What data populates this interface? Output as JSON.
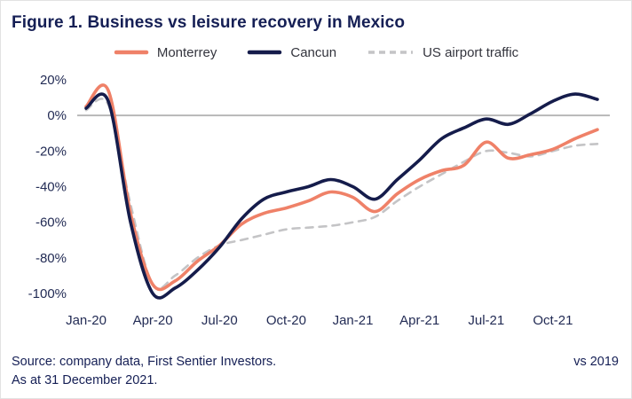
{
  "figure": {
    "title": "Figure 1. Business vs leisure recovery in Mexico",
    "source_line1": "Source: company data, First Sentier Investors.",
    "source_line2": "As at 31 December 2021.",
    "note_right": "vs 2019"
  },
  "colors": {
    "title_text": "#151f55",
    "axis_text": "#232c55",
    "zero_line": "#b4b4b4",
    "monterrey": "#ef8168",
    "cancun": "#151c4b",
    "us_airport_traffic": "#c4c4c6"
  },
  "chart_data": {
    "type": "line",
    "title": "Figure 1. Business vs leisure recovery in Mexico",
    "x": [
      "Jan-20",
      "Feb-20",
      "Mar-20",
      "Apr-20",
      "May-20",
      "Jun-20",
      "Jul-20",
      "Aug-20",
      "Sep-20",
      "Oct-20",
      "Nov-20",
      "Dec-20",
      "Jan-21",
      "Feb-21",
      "Mar-21",
      "Apr-21",
      "May-21",
      "Jun-21",
      "Jul-21",
      "Aug-21",
      "Sep-21",
      "Oct-21",
      "Nov-21",
      "Dec-21"
    ],
    "x_tick_labels": [
      "Jan-20",
      "Apr-20",
      "Jul-20",
      "Oct-20",
      "Jan-21",
      "Apr-21",
      "Jul-21",
      "Oct-21"
    ],
    "y_ticks": [
      20,
      0,
      -20,
      -40,
      -60,
      -80,
      -100
    ],
    "y_tick_suffix": "%",
    "ylim": [
      -104,
      23
    ],
    "grid": "zero-line-only",
    "legend_position": "top",
    "xlabel": "",
    "ylabel": "",
    "series": [
      {
        "name": "Monterrey",
        "color": "#ef8168",
        "dashed": false,
        "width": 3.6,
        "values": [
          5,
          14,
          -55,
          -95,
          -93,
          -82,
          -73,
          -61,
          -55,
          -52,
          -48,
          -43,
          -46,
          -54,
          -44,
          -36,
          -31,
          -28,
          -15,
          -24,
          -22,
          -19,
          -13,
          -8
        ]
      },
      {
        "name": "Cancun",
        "color": "#151c4b",
        "dashed": false,
        "width": 3.6,
        "values": [
          4,
          8,
          -60,
          -100,
          -97,
          -87,
          -74,
          -58,
          -47,
          -43,
          -40,
          -36,
          -40,
          -47,
          -36,
          -25,
          -13,
          -7,
          -2,
          -5,
          1,
          8,
          12,
          9
        ]
      },
      {
        "name": "US airport traffic",
        "color": "#c4c4c6",
        "dashed": true,
        "width": 2.6,
        "values": [
          3,
          6,
          -50,
          -95,
          -90,
          -80,
          -73,
          -70,
          -67,
          -64,
          -63,
          -62,
          -60,
          -57,
          -48,
          -40,
          -33,
          -26,
          -20,
          -21,
          -23,
          -20,
          -17,
          -16
        ]
      }
    ]
  }
}
